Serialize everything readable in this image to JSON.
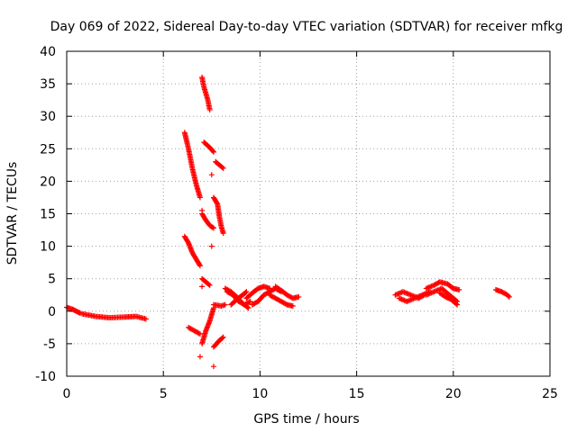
{
  "chart_data": {
    "type": "scatter",
    "title": "Day 069 of 2022, Sidereal Day-to-day VTEC variation (SDTVAR) for receiver mfkg",
    "xlabel": "GPS time / hours",
    "ylabel": "SDTVAR / TECUs",
    "xlim": [
      0,
      25
    ],
    "ylim": [
      -10,
      40
    ],
    "xticks": [
      0,
      5,
      10,
      15,
      20,
      25
    ],
    "yticks": [
      -10,
      -5,
      0,
      5,
      10,
      15,
      20,
      25,
      30,
      35,
      40
    ],
    "grid": true,
    "marker": "+",
    "marker_color": "#ff0000",
    "series": [
      {
        "name": "SDTVAR",
        "segments": [
          [
            [
              0.0,
              0.6
            ],
            [
              0.3,
              0.3
            ],
            [
              0.5,
              0.0
            ],
            [
              0.7,
              -0.3
            ]
          ],
          [
            [
              0.8,
              -0.4
            ],
            [
              1.5,
              -0.8
            ],
            [
              2.2,
              -1.0
            ],
            [
              3.0,
              -0.9
            ],
            [
              3.6,
              -0.8
            ],
            [
              4.1,
              -1.2
            ]
          ],
          [
            [
              6.1,
              27.5
            ],
            [
              6.3,
              25.0
            ],
            [
              6.5,
              22.0
            ],
            [
              6.7,
              19.5
            ],
            [
              6.9,
              17.5
            ]
          ],
          [
            [
              6.1,
              11.5
            ],
            [
              6.3,
              10.5
            ],
            [
              6.5,
              9.0
            ],
            [
              6.7,
              8.0
            ],
            [
              6.9,
              7.0
            ]
          ],
          [
            [
              7.0,
              36.0
            ],
            [
              7.1,
              34.5
            ],
            [
              7.3,
              32.5
            ],
            [
              7.4,
              31.0
            ]
          ],
          [
            [
              7.1,
              26.0
            ],
            [
              7.4,
              25.2
            ],
            [
              7.6,
              24.5
            ]
          ],
          [
            [
              7.7,
              23.0
            ],
            [
              7.9,
              22.5
            ],
            [
              8.1,
              22.0
            ]
          ],
          [
            [
              7.0,
              15.0
            ],
            [
              7.2,
              14.0
            ],
            [
              7.4,
              13.2
            ],
            [
              7.6,
              12.8
            ]
          ],
          [
            [
              7.6,
              17.5
            ],
            [
              7.8,
              16.5
            ],
            [
              7.9,
              14.5
            ],
            [
              8.0,
              13.0
            ],
            [
              8.1,
              12.0
            ]
          ],
          [
            [
              7.0,
              5.0
            ],
            [
              7.2,
              4.5
            ],
            [
              7.4,
              4.0
            ]
          ],
          [
            [
              6.3,
              -2.5
            ],
            [
              6.6,
              -3.0
            ],
            [
              6.9,
              -3.5
            ]
          ],
          [
            [
              7.0,
              -5.0
            ],
            [
              7.2,
              -3.0
            ],
            [
              7.4,
              -1.5
            ],
            [
              7.6,
              0.5
            ]
          ],
          [
            [
              7.6,
              -5.5
            ],
            [
              7.9,
              -4.5
            ],
            [
              8.1,
              -4.0
            ]
          ],
          [
            [
              7.6,
              1.0
            ],
            [
              8.0,
              0.8
            ],
            [
              8.2,
              1.0
            ]
          ],
          [
            [
              8.3,
              3.0
            ],
            [
              8.6,
              2.5
            ],
            [
              8.9,
              1.5
            ],
            [
              9.2,
              1.0
            ],
            [
              9.5,
              1.5
            ]
          ],
          [
            [
              8.5,
              1.0
            ],
            [
              8.8,
              1.8
            ],
            [
              9.1,
              2.5
            ],
            [
              9.3,
              3.0
            ]
          ],
          [
            [
              8.2,
              3.5
            ],
            [
              8.5,
              3.0
            ],
            [
              8.8,
              2.2
            ],
            [
              9.1,
              1.2
            ],
            [
              9.4,
              0.5
            ]
          ],
          [
            [
              9.3,
              2.0
            ],
            [
              9.6,
              2.8
            ],
            [
              9.9,
              3.5
            ],
            [
              10.2,
              3.8
            ],
            [
              10.5,
              3.5
            ]
          ],
          [
            [
              9.6,
              1.0
            ],
            [
              9.9,
              1.5
            ],
            [
              10.2,
              2.5
            ],
            [
              10.5,
              3.0
            ],
            [
              10.8,
              3.5
            ],
            [
              11.1,
              3.0
            ]
          ],
          [
            [
              10.5,
              2.5
            ],
            [
              10.8,
              2.0
            ],
            [
              11.1,
              1.5
            ],
            [
              11.4,
              1.0
            ],
            [
              11.7,
              0.8
            ]
          ],
          [
            [
              10.8,
              3.8
            ],
            [
              11.1,
              3.2
            ],
            [
              11.4,
              2.5
            ],
            [
              11.7,
              2.0
            ],
            [
              12.0,
              2.2
            ]
          ],
          [
            [
              17.0,
              2.5
            ],
            [
              17.4,
              3.0
            ],
            [
              17.8,
              2.5
            ],
            [
              18.2,
              2.0
            ],
            [
              18.5,
              2.5
            ]
          ],
          [
            [
              17.2,
              2.0
            ],
            [
              17.6,
              1.5
            ],
            [
              18.0,
              2.0
            ],
            [
              18.4,
              2.5
            ],
            [
              18.8,
              3.0
            ]
          ],
          [
            [
              18.6,
              3.5
            ],
            [
              19.0,
              4.0
            ],
            [
              19.3,
              4.5
            ],
            [
              19.7,
              4.2
            ],
            [
              20.0,
              3.5
            ],
            [
              20.3,
              3.3
            ]
          ],
          [
            [
              18.6,
              2.5
            ],
            [
              19.0,
              3.0
            ],
            [
              19.4,
              3.5
            ],
            [
              19.8,
              2.5
            ],
            [
              20.2,
              1.5
            ]
          ],
          [
            [
              19.3,
              2.8
            ],
            [
              19.6,
              2.2
            ],
            [
              19.9,
              1.8
            ],
            [
              20.2,
              1.0
            ]
          ],
          [
            [
              22.2,
              3.3
            ],
            [
              22.5,
              3.0
            ],
            [
              22.8,
              2.5
            ],
            [
              22.9,
              2.2
            ]
          ]
        ],
        "isolated_points": [
          [
            7.0,
            15.5
          ],
          [
            7.5,
            21.0
          ],
          [
            7.5,
            10.0
          ],
          [
            7.0,
            3.8
          ],
          [
            6.9,
            -7.0
          ],
          [
            7.6,
            -8.5
          ]
        ]
      }
    ]
  }
}
